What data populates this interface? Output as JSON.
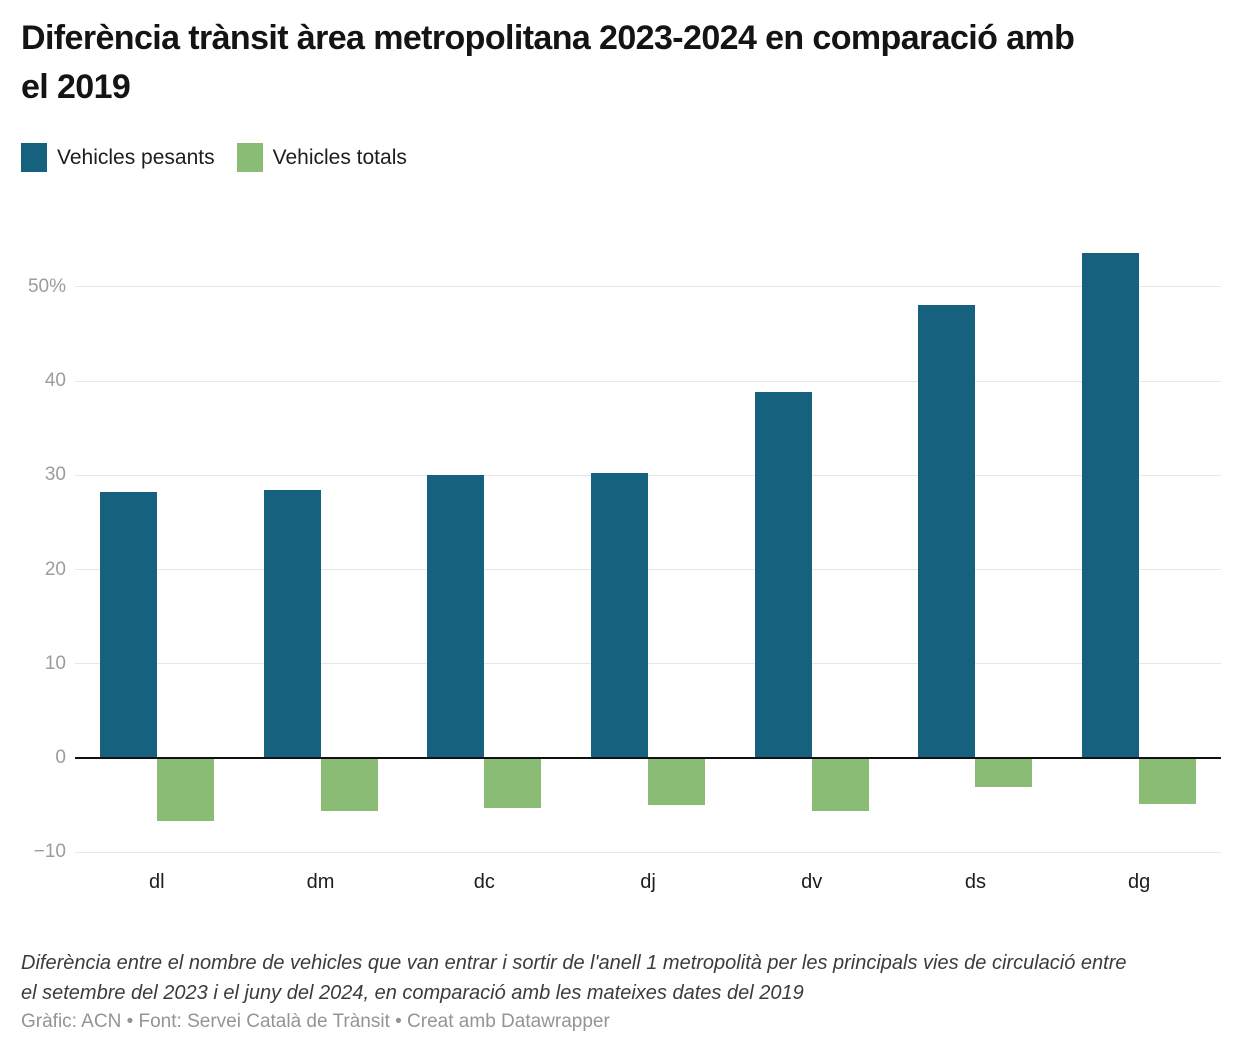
{
  "header": {
    "title": "Diferència trànsit àrea metropolitana 2023-2024 en comparació amb el 2019"
  },
  "legend": {
    "items": [
      {
        "label": "Vehicles pesants",
        "color": "#16617e"
      },
      {
        "label": "Vehicles totals",
        "color": "#8abc75"
      }
    ]
  },
  "chart_data": {
    "type": "bar",
    "title": "Diferència trànsit àrea metropolitana 2023-2024 en comparació amb el 2019",
    "categories": [
      "dl",
      "dm",
      "dc",
      "dj",
      "dv",
      "ds",
      "dg"
    ],
    "series": [
      {
        "name": "Vehicles pesants",
        "color": "#16617e",
        "values": [
          28.2,
          28.4,
          30.0,
          30.2,
          38.8,
          48.1,
          53.6
        ]
      },
      {
        "name": "Vehicles totals",
        "color": "#8abc75",
        "values": [
          -6.7,
          -5.6,
          -5.3,
          -5.0,
          -5.6,
          -3.1,
          -4.9
        ]
      }
    ],
    "xlabel": "",
    "ylabel": "",
    "unit": "%",
    "ylim": [
      -10,
      55
    ],
    "grid": true,
    "legend_position": "top",
    "yticks": [
      {
        "value": 50,
        "label": "50%"
      },
      {
        "value": 40,
        "label": "40"
      },
      {
        "value": 30,
        "label": "30"
      },
      {
        "value": 20,
        "label": "20"
      },
      {
        "value": 10,
        "label": "10"
      },
      {
        "value": 0,
        "label": "0"
      },
      {
        "value": -10,
        "label": "−10"
      }
    ]
  },
  "footer": {
    "note": "Diferència entre el nombre de vehicles que van entrar i sortir de l'anell 1 metropolità per les principals vies de circulació entre el setembre del 2023 i el juny del 2024, en comparació amb les mateixes dates del 2019",
    "attribution": "Gràfic: ACN • Font: Servei Català de Trànsit • Creat amb Datawrapper"
  }
}
